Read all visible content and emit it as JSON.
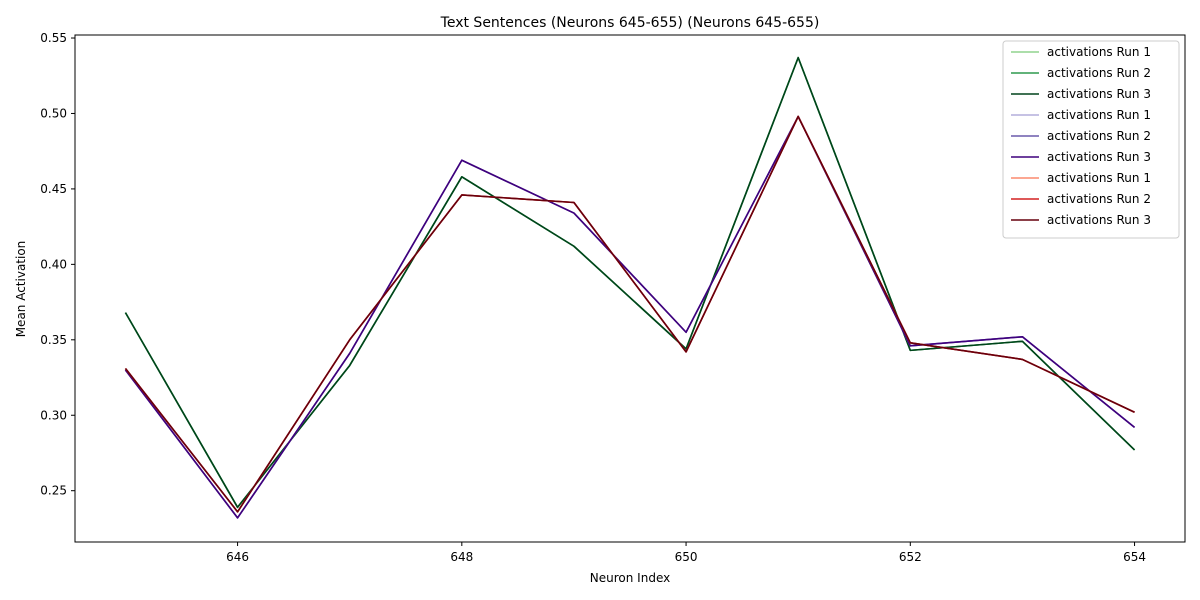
{
  "chart_data": {
    "type": "line",
    "title": "Text Sentences (Neurons 645-655) (Neurons 645-655)",
    "xlabel": "Neuron Index",
    "ylabel": "Mean Activation",
    "xlim": [
      644.55,
      654.45
    ],
    "ylim": [
      0.216,
      0.552
    ],
    "xticks": [
      646,
      648,
      650,
      652,
      654
    ],
    "yticks": [
      0.25,
      0.3,
      0.35,
      0.4,
      0.45,
      0.5,
      0.55
    ],
    "ytick_labels": [
      "0.25",
      "0.30",
      "0.35",
      "0.40",
      "0.45",
      "0.50",
      "0.55"
    ],
    "grid": false,
    "legend_position": "top-right",
    "x": [
      645,
      646,
      647,
      648,
      649,
      650,
      651,
      652,
      653,
      654
    ],
    "series": [
      {
        "name": "activations Run 1",
        "color": "#90d38d",
        "values": [
          0.368,
          0.239,
          0.333,
          0.458,
          0.412,
          0.344,
          0.537,
          0.343,
          0.349,
          0.277
        ]
      },
      {
        "name": "activations Run 2",
        "color": "#2f9a4f",
        "values": [
          0.368,
          0.239,
          0.333,
          0.458,
          0.412,
          0.344,
          0.537,
          0.343,
          0.349,
          0.277
        ]
      },
      {
        "name": "activations Run 3",
        "color": "#00441b",
        "values": [
          0.368,
          0.239,
          0.333,
          0.458,
          0.412,
          0.344,
          0.537,
          0.343,
          0.349,
          0.277
        ]
      },
      {
        "name": "activations Run 1",
        "color": "#b4addc",
        "values": [
          0.33,
          0.232,
          0.341,
          0.469,
          0.434,
          0.355,
          0.498,
          0.346,
          0.352,
          0.292
        ]
      },
      {
        "name": "activations Run 2",
        "color": "#6a5aab",
        "values": [
          0.33,
          0.232,
          0.341,
          0.469,
          0.434,
          0.355,
          0.498,
          0.346,
          0.352,
          0.292
        ]
      },
      {
        "name": "activations Run 3",
        "color": "#3f007d",
        "values": [
          0.33,
          0.232,
          0.341,
          0.469,
          0.434,
          0.355,
          0.498,
          0.346,
          0.352,
          0.292
        ]
      },
      {
        "name": "activations Run 1",
        "color": "#fb8a6e",
        "values": [
          0.331,
          0.236,
          0.35,
          0.446,
          0.441,
          0.342,
          0.498,
          0.348,
          0.337,
          0.302
        ]
      },
      {
        "name": "activations Run 2",
        "color": "#d32020",
        "values": [
          0.331,
          0.236,
          0.35,
          0.446,
          0.441,
          0.342,
          0.498,
          0.348,
          0.337,
          0.302
        ]
      },
      {
        "name": "activations Run 3",
        "color": "#67000d",
        "values": [
          0.331,
          0.236,
          0.35,
          0.446,
          0.441,
          0.342,
          0.498,
          0.348,
          0.337,
          0.302
        ]
      }
    ]
  }
}
